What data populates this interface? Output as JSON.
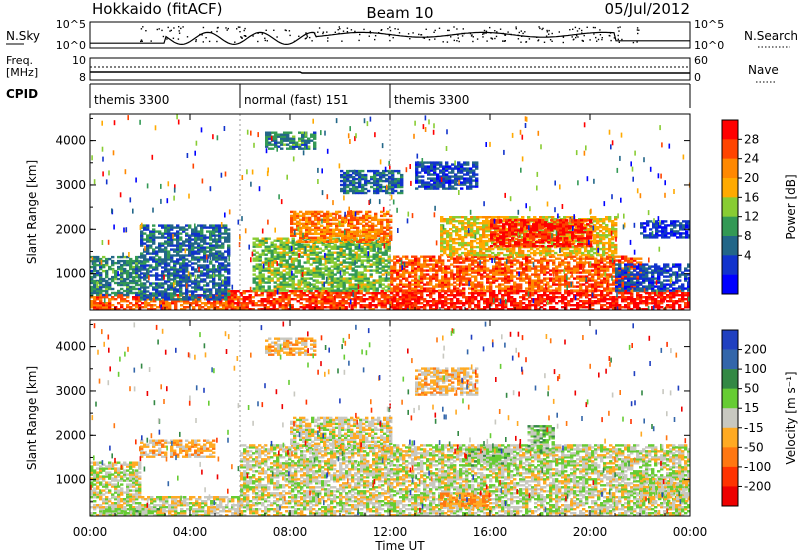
{
  "header": {
    "station": "Hokkaido (fitACF)",
    "beam": "Beam 10",
    "date": "05/Jul/2012"
  },
  "top_strips": {
    "nsky_label": "N.Sky",
    "nsearch_label": "N.Search",
    "freq_label_1": "Freq.",
    "freq_label_2": "[MHz]",
    "nave_label": "Nave",
    "cpid_label": "CPID",
    "nsky_ticks": [
      "10^5",
      "10^0"
    ],
    "nsearch_ticks": [
      "10^5",
      "10^0"
    ],
    "freq_ticks": [
      "10",
      "8"
    ],
    "nave_ticks": [
      "60",
      "0"
    ]
  },
  "cpid_segments": [
    {
      "start": 0,
      "end": 6,
      "label": "themis 3300"
    },
    {
      "start": 6,
      "end": 12,
      "label": "normal (fast) 151"
    },
    {
      "start": 12,
      "end": 24,
      "label": "themis 3300"
    }
  ],
  "colorbars": {
    "power": {
      "label": "Power [dB]",
      "ticks": [
        "28",
        "24",
        "20",
        "16",
        "12",
        "8",
        "4"
      ],
      "colors": [
        "#ff0000",
        "#ff4400",
        "#ff8800",
        "#ffaa00",
        "#88cc33",
        "#339955",
        "#226688",
        "#1133cc",
        "#0000ff"
      ]
    },
    "velocity": {
      "label": "Velocity [m s⁻¹]",
      "ticks": [
        "200",
        "100",
        "50",
        "15",
        "-15",
        "-50",
        "-100",
        "-200"
      ],
      "colors": [
        "#2040c0",
        "#3366aa",
        "#338844",
        "#66cc33",
        "#c8c8c0",
        "#ffaa22",
        "#ff7711",
        "#ff3300",
        "#ee0000"
      ]
    }
  },
  "chart_data": [
    {
      "type": "heatmap",
      "title": "",
      "xlabel": "Time UT",
      "ylabel": "Slant Range [km]",
      "xlim": [
        0,
        24
      ],
      "ylim": [
        180,
        4600
      ],
      "x_ticks": [
        "00:00",
        "04:00",
        "08:00",
        "12:00",
        "16:00",
        "20:00",
        "00:00"
      ],
      "y_ticks": [
        1000,
        2000,
        3000,
        4000
      ],
      "variable": "power",
      "scale": [
        0,
        30
      ],
      "regions": [
        {
          "t0": 0.0,
          "t1": 6.0,
          "r0": 180,
          "r1": 500,
          "v": 24
        },
        {
          "t0": 0.0,
          "t1": 2.0,
          "r0": 500,
          "r1": 1400,
          "v": 10
        },
        {
          "t0": 2.0,
          "t1": 5.5,
          "r0": 400,
          "r1": 2100,
          "v": 8
        },
        {
          "t0": 5.5,
          "t1": 13.0,
          "r0": 180,
          "r1": 600,
          "v": 26
        },
        {
          "t0": 6.5,
          "t1": 12.0,
          "r0": 600,
          "r1": 1800,
          "v": 14
        },
        {
          "t0": 8.0,
          "t1": 12.0,
          "r0": 1700,
          "r1": 2400,
          "v": 22
        },
        {
          "t0": 12.0,
          "t1": 24.0,
          "r0": 180,
          "r1": 600,
          "v": 28
        },
        {
          "t0": 12.0,
          "t1": 22.0,
          "r0": 600,
          "r1": 1400,
          "v": 24
        },
        {
          "t0": 14.0,
          "t1": 21.0,
          "r0": 1400,
          "r1": 2300,
          "v": 18
        },
        {
          "t0": 16.0,
          "t1": 20.0,
          "r0": 1600,
          "r1": 2200,
          "v": 27
        },
        {
          "t0": 10.0,
          "t1": 12.5,
          "r0": 2800,
          "r1": 3300,
          "v": 8
        },
        {
          "t0": 13.0,
          "t1": 15.5,
          "r0": 2900,
          "r1": 3500,
          "v": 6
        },
        {
          "t0": 7.0,
          "t1": 9.0,
          "r0": 3800,
          "r1": 4200,
          "v": 10
        },
        {
          "t0": 21.0,
          "t1": 24.0,
          "r0": 600,
          "r1": 1200,
          "v": 6
        },
        {
          "t0": 22.0,
          "t1": 24.0,
          "r0": 1800,
          "r1": 2200,
          "v": 5
        }
      ]
    },
    {
      "type": "heatmap",
      "title": "",
      "xlabel": "Time UT",
      "ylabel": "Slant Range [km]",
      "xlim": [
        0,
        24
      ],
      "ylim": [
        180,
        4600
      ],
      "x_ticks": [
        "00:00",
        "04:00",
        "08:00",
        "12:00",
        "16:00",
        "20:00",
        "00:00"
      ],
      "y_ticks": [
        1000,
        2000,
        3000,
        4000
      ],
      "variable": "velocity",
      "scale": [
        -200,
        200
      ],
      "regions": [
        {
          "t0": 0.0,
          "t1": 6.0,
          "r0": 180,
          "r1": 600,
          "v": -5
        },
        {
          "t0": 0.0,
          "t1": 2.0,
          "r0": 600,
          "r1": 1400,
          "v": 5
        },
        {
          "t0": 0.5,
          "t1": 3.0,
          "r0": 180,
          "r1": 350,
          "v": 30
        },
        {
          "t0": 6.0,
          "t1": 12.0,
          "r0": 180,
          "r1": 1800,
          "v": 0
        },
        {
          "t0": 8.0,
          "t1": 12.0,
          "r0": 1700,
          "r1": 2400,
          "v": -5
        },
        {
          "t0": 12.0,
          "t1": 24.0,
          "r0": 180,
          "r1": 1800,
          "v": 5
        },
        {
          "t0": 14.0,
          "t1": 16.0,
          "r0": 350,
          "r1": 700,
          "v": -60
        },
        {
          "t0": 17.5,
          "t1": 18.5,
          "r0": 1600,
          "r1": 2200,
          "v": 40
        },
        {
          "t0": 15.0,
          "t1": 17.0,
          "r0": 1300,
          "r1": 1700,
          "v": 30
        },
        {
          "t0": 13.0,
          "t1": 15.5,
          "r0": 2900,
          "r1": 3500,
          "v": -30
        },
        {
          "t0": 7.0,
          "t1": 9.0,
          "r0": 3800,
          "r1": 4200,
          "v": -40
        },
        {
          "t0": 22.0,
          "t1": 24.0,
          "r0": 500,
          "r1": 1000,
          "v": 0
        },
        {
          "t0": 2.0,
          "t1": 5.0,
          "r0": 1500,
          "r1": 1900,
          "v": -40
        }
      ]
    }
  ]
}
